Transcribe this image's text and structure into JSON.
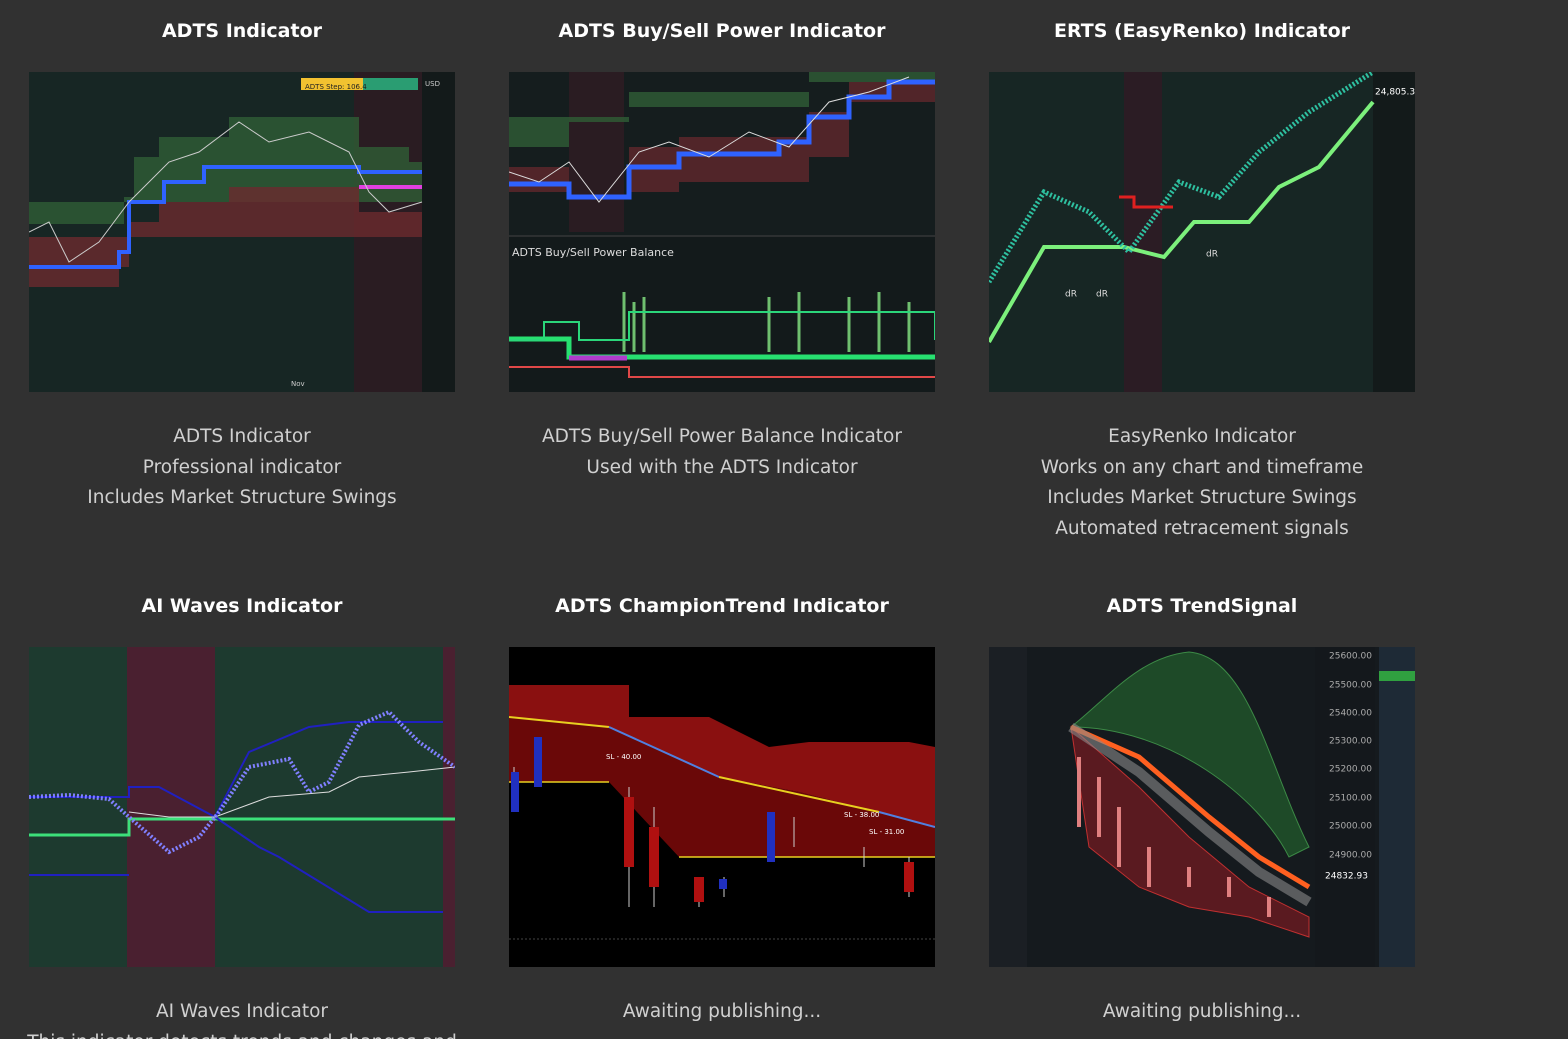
{
  "cards": [
    {
      "title": "ADTS Indicator",
      "description": [
        "ADTS Indicator",
        "Professional indicator",
        "Includes Market Structure Swings"
      ],
      "image_labels": [
        "ADTS Step: 106.4",
        "USD",
        "Nov"
      ]
    },
    {
      "title": "ADTS Buy/Sell Power Indicator",
      "description": [
        "ADTS Buy/Sell Power Balance Indicator",
        "Used with the ADTS Indicator"
      ],
      "image_labels": [
        "ADTS Buy/Sell Power Balance"
      ]
    },
    {
      "title": "ERTS (EasyRenko) Indicator",
      "description": [
        "EasyRenko Indicator",
        "Works on any chart and timeframe",
        "Includes Market Structure Swings",
        "Automated retracement signals"
      ],
      "image_labels": [
        "dR",
        "dR",
        "dR",
        "24,805.3"
      ]
    },
    {
      "title": "AI Waves Indicator",
      "description": [
        "AI Waves Indicator",
        "This indicator detects trends and changes and"
      ],
      "image_labels": []
    },
    {
      "title": "ADTS ChampionTrend Indicator",
      "description": [
        "Awaiting publishing..."
      ],
      "image_labels": [
        "SL - 40.00",
        "SL - 38.00",
        "SL - 31.00"
      ]
    },
    {
      "title": "ADTS TrendSignal",
      "description": [
        "Awaiting publishing..."
      ],
      "image_labels": [
        "25600.00",
        "25500.00",
        "25400.00",
        "25300.00",
        "25200.00",
        "25100.00",
        "25000.00",
        "24900.00",
        "24832.93"
      ]
    }
  ]
}
